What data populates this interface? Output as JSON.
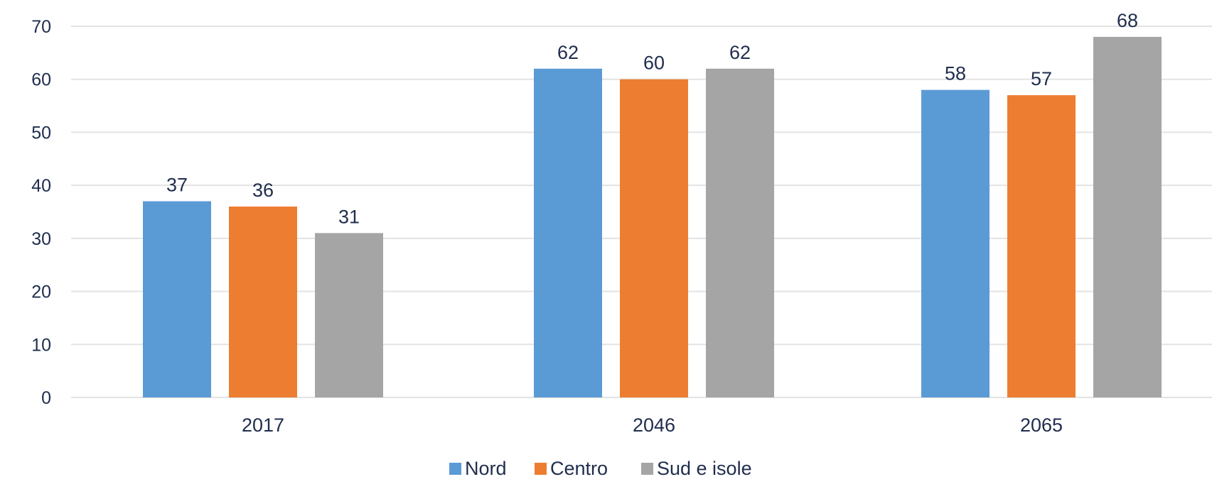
{
  "chart_data": {
    "type": "bar",
    "title": "",
    "xlabel": "",
    "ylabel": "",
    "categories": [
      "2017",
      "2046",
      "2065"
    ],
    "series": [
      {
        "name": "Nord",
        "values": [
          37,
          62,
          58
        ],
        "color": "#5b9bd5"
      },
      {
        "name": "Centro",
        "values": [
          36,
          60,
          57
        ],
        "color": "#ed7d31"
      },
      {
        "name": "Sud e isole",
        "values": [
          31,
          62,
          68
        ],
        "color": "#a5a5a5"
      }
    ],
    "ylim": [
      0,
      70
    ],
    "yticks": [
      0,
      10,
      20,
      30,
      40,
      50,
      60,
      70
    ],
    "grid": true,
    "legend_position": "bottom-center",
    "data_labels": true
  }
}
